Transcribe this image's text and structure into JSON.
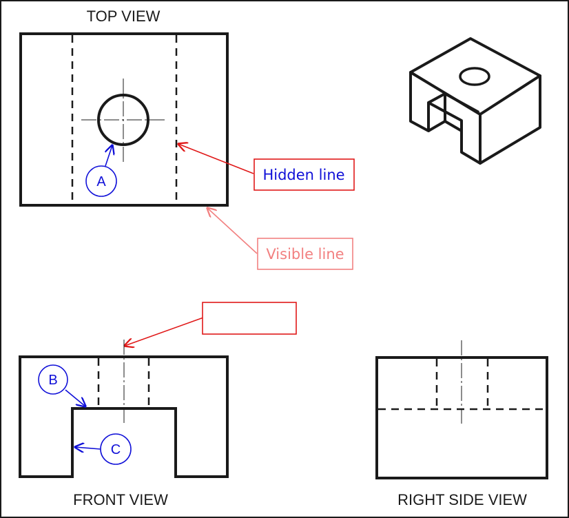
{
  "views": {
    "top": "TOP VIEW",
    "front": "FRONT VIEW",
    "right_side": "RIGHT SIDE VIEW"
  },
  "callouts": {
    "hidden_line": "Hidden line",
    "visible_line": "Visible line",
    "blank": ""
  },
  "markers": {
    "a": "A",
    "b": "B",
    "c": "C"
  },
  "colors": {
    "line": "#1a1a1a",
    "red": "#e01818",
    "pink": "#f28080",
    "blue": "#1010d8"
  }
}
